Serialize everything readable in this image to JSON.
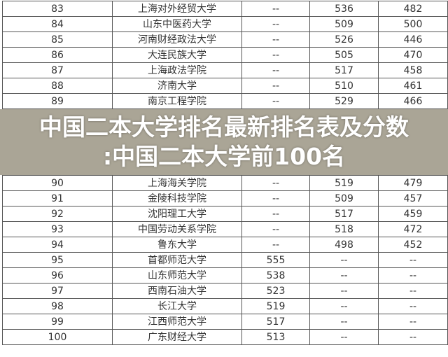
{
  "title": "中国二本大学排名最新排名表及分数:中国二本大学前100名",
  "title_line1": "中国二本大学排名最新排名表及分数",
  "title_line2": ":中国二本大学前100名",
  "rows": [
    [
      "83",
      "上海对外经贸大学",
      "--",
      "536",
      "482"
    ],
    [
      "84",
      "山东中医药大学",
      "--",
      "509",
      "500"
    ],
    [
      "85",
      "河南财经政法大学",
      "--",
      "526",
      "446"
    ],
    [
      "86",
      "大连民族大学",
      "--",
      "505",
      "470"
    ],
    [
      "87",
      "上海政法学院",
      "--",
      "517",
      "458"
    ],
    [
      "88",
      "济南大学",
      "--",
      "510",
      "461"
    ],
    [
      "89",
      "南京工程学院",
      "--",
      "529",
      "466"
    ],
    [
      "90",
      "上海海关学院",
      "--",
      "519",
      "479"
    ],
    [
      "91",
      "金陵科技学院",
      "--",
      "509",
      "457"
    ],
    [
      "92",
      "沈阳理工大学",
      "--",
      "517",
      "459"
    ],
    [
      "93",
      "中国劳动关系学院",
      "--",
      "518",
      "472"
    ],
    [
      "94",
      "鲁东大学",
      "--",
      "498",
      "452"
    ],
    [
      "95",
      "首都师范大学",
      "555",
      "--",
      "--"
    ],
    [
      "96",
      "山东师范大学",
      "538",
      "--",
      "--"
    ],
    [
      "97",
      "西南石油大学",
      "523",
      "--",
      "--"
    ],
    [
      "98",
      "长江大学",
      "519",
      "--",
      "--"
    ],
    [
      "99",
      "江西师范大学",
      "517",
      "--",
      "--"
    ],
    [
      "100",
      "广东财经大学",
      "513",
      "--",
      "--"
    ]
  ]
}
